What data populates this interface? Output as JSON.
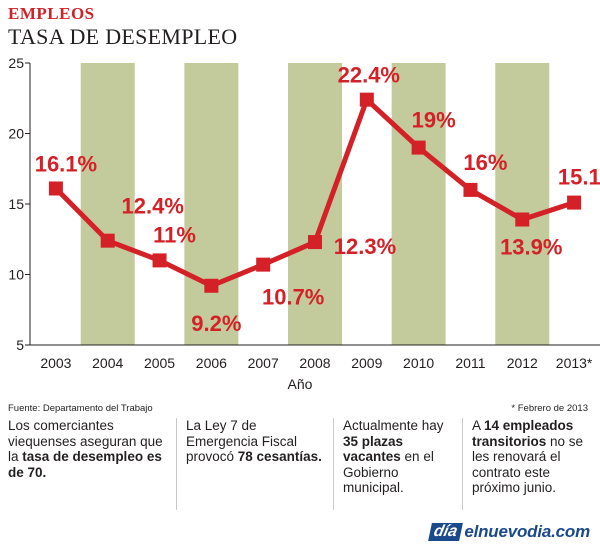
{
  "header": {
    "kicker": "EMPLEOS",
    "title": "TASA DE DESEMPLEO"
  },
  "colors": {
    "accent": "#d42027",
    "band": "#c3ca9c",
    "axis": "#231f20",
    "logo": "#1b4a8c"
  },
  "chart_data": {
    "type": "line",
    "title": "TASA DE DESEMPLEO",
    "xlabel": "Año",
    "ylabel": "",
    "ylim": [
      5,
      25
    ],
    "yticks": [
      "5",
      "10",
      "15",
      "20",
      "25"
    ],
    "grid": false,
    "shaded_alternate_columns": true,
    "categories": [
      "2003",
      "2004",
      "2005",
      "2006",
      "2007",
      "2008",
      "2009",
      "2010",
      "2011",
      "2012",
      "2013*"
    ],
    "series": [
      {
        "values": [
          16.1,
          12.4,
          11,
          9.2,
          10.7,
          12.3,
          22.4,
          19,
          16,
          13.9,
          15.1
        ],
        "color": "#d42027"
      }
    ],
    "data_labels": [
      "16.1%",
      "12.4%",
      "11%",
      "9.2%",
      "10.7%",
      "12.3%",
      "22.4%",
      "19%",
      "16%",
      "13.9%",
      "15.1%"
    ]
  },
  "footer": {
    "source": "Fuente: Departamento del Trabajo",
    "footnote": "* Febrero de 2013"
  },
  "facts": [
    {
      "pre": "Los comerciantes viequenses aseguran que la ",
      "bold": "tasa de desempleo es de 70.",
      "post": ""
    },
    {
      "pre": "La Ley 7 de Emergencia Fiscal provocó ",
      "bold": "78 cesantías.",
      "post": ""
    },
    {
      "pre": "Actualmente hay ",
      "bold": "35 plazas vacantes",
      "post": " en el Gobierno municipal."
    },
    {
      "pre": "A ",
      "bold": "14 empleados transitorios",
      "post": " no se les renovará el contrato este próximo junio."
    }
  ],
  "logo": {
    "mark": "día",
    "text": "elnuevodia.com"
  }
}
